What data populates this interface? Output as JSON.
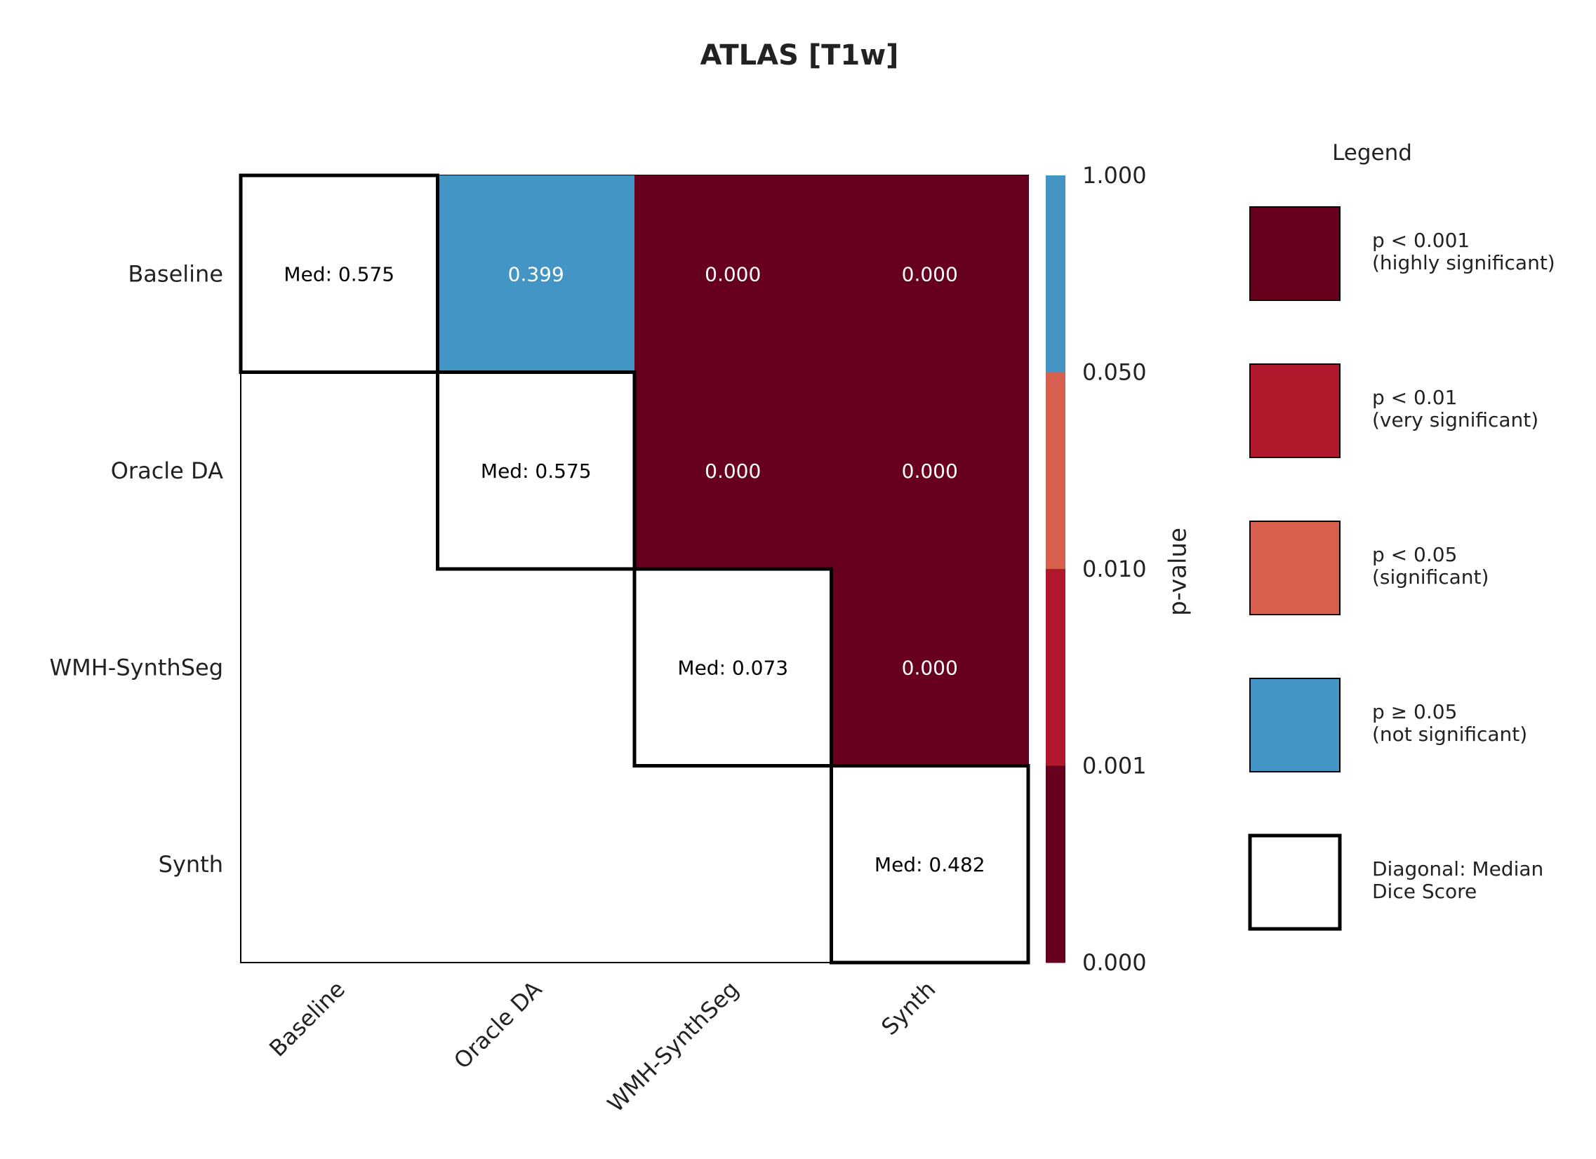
{
  "chart_data": {
    "type": "heatmap",
    "title": "ATLAS [T1w]",
    "row_labels": [
      "Baseline",
      "Oracle DA",
      "WMH-SynthSeg",
      "Synth"
    ],
    "col_labels": [
      "Baseline",
      "Oracle DA",
      "WMH-SynthSeg",
      "Synth"
    ],
    "diagonal_prefix": "Med: ",
    "diagonal": [
      "0.575",
      "0.575",
      "0.073",
      "0.482"
    ],
    "upper_cells": [
      {
        "row": 0,
        "col": 1,
        "value": 0.399,
        "label": "0.399"
      },
      {
        "row": 0,
        "col": 2,
        "value": 0.0,
        "label": "0.000"
      },
      {
        "row": 0,
        "col": 3,
        "value": 0.0,
        "label": "0.000"
      },
      {
        "row": 1,
        "col": 2,
        "value": 0.0,
        "label": "0.000"
      },
      {
        "row": 1,
        "col": 3,
        "value": 0.0,
        "label": "0.000"
      },
      {
        "row": 2,
        "col": 3,
        "value": 0.0,
        "label": "0.000"
      }
    ],
    "colorbar": {
      "label": "p-value",
      "ticks": [
        "1.000",
        "0.050",
        "0.010",
        "0.001",
        "0.000"
      ],
      "colors": [
        "#4395c5",
        "#d6604d",
        "#b2182b",
        "#67001f"
      ]
    },
    "legend": {
      "title": "Legend",
      "placement": "right",
      "items": [
        {
          "color": "#67001f",
          "line1": "p < 0.001",
          "line2": "(highly significant)",
          "style": "fill"
        },
        {
          "color": "#b2182b",
          "line1": "p < 0.01",
          "line2": "(very significant)",
          "style": "fill"
        },
        {
          "color": "#d6604d",
          "line1": "p < 0.05",
          "line2": "(significant)",
          "style": "fill"
        },
        {
          "color": "#4395c5",
          "line1": "p ≥ 0.05",
          "line2": "(not significant)",
          "style": "fill"
        },
        {
          "color": "#ffffff",
          "line1": "Diagonal: Median",
          "line2": "Dice Score",
          "style": "outline"
        }
      ]
    }
  }
}
